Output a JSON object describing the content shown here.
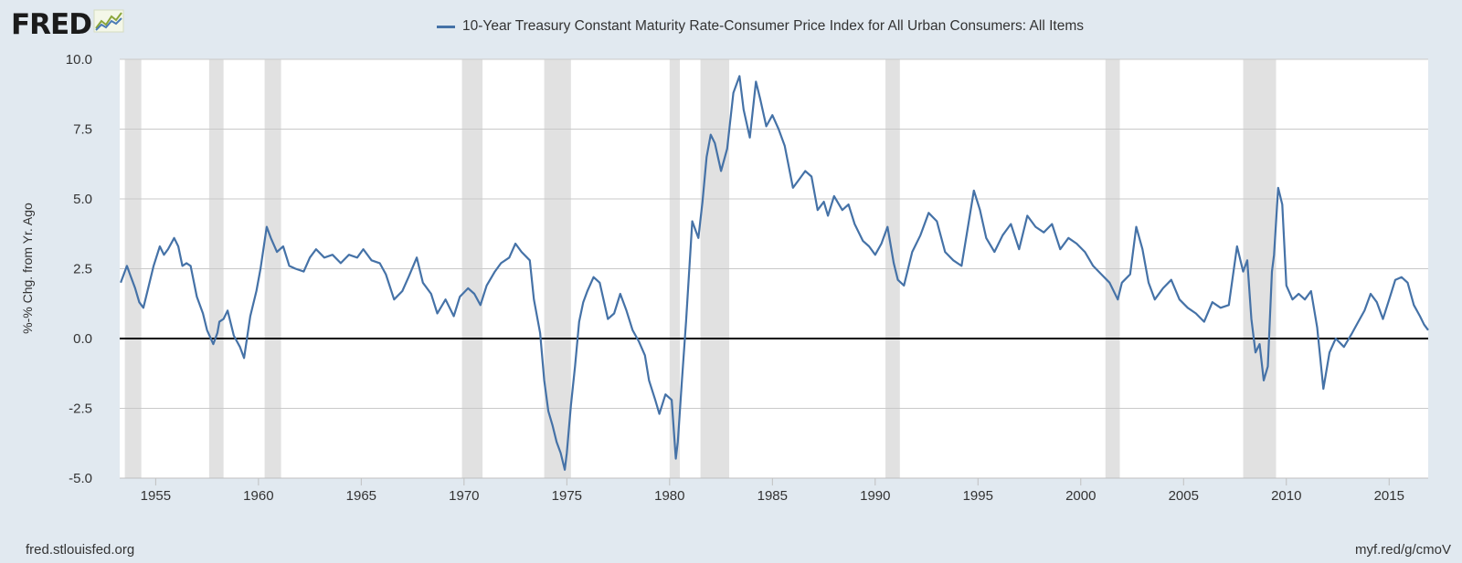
{
  "header": {
    "logo_text": "FRED",
    "logo_icon": "line-chart-icon"
  },
  "footer": {
    "left": "fred.stlouisfed.org",
    "right": "myf.red/g/cmoV"
  },
  "colors": {
    "series": "#4572a7",
    "recession": "#e1e1e1",
    "grid": "#c9c9c9",
    "zero_line": "#000000",
    "background": "#e1e9f0",
    "plot_background": "#ffffff"
  },
  "chart_data": {
    "type": "line",
    "title": "",
    "legend": "10-Year Treasury Constant Maturity Rate-Consumer Price Index for All Urban Consumers: All Items",
    "legend_position": "top-center",
    "ylabel": "%-% Chg. from Yr. Ago",
    "xlabel": "",
    "xlim": [
      1953.25,
      2016.9
    ],
    "ylim": [
      -5.0,
      10.0
    ],
    "yticks": [
      -5.0,
      -2.5,
      0.0,
      2.5,
      5.0,
      7.5,
      10.0
    ],
    "ytick_labels": [
      "-5.0",
      "-2.5",
      "0.0",
      "2.5",
      "5.0",
      "7.5",
      "10.0"
    ],
    "xticks": [
      1955,
      1960,
      1965,
      1970,
      1975,
      1980,
      1985,
      1990,
      1995,
      2000,
      2005,
      2010,
      2015
    ],
    "xtick_labels": [
      "1955",
      "1960",
      "1965",
      "1970",
      "1975",
      "1980",
      "1985",
      "1990",
      "1995",
      "2000",
      "2005",
      "2010",
      "2015"
    ],
    "grid": true,
    "recessions": [
      [
        1953.5,
        1954.3
      ],
      [
        1957.6,
        1958.3
      ],
      [
        1960.3,
        1961.1
      ],
      [
        1969.9,
        1970.9
      ],
      [
        1973.9,
        1975.2
      ],
      [
        1980.0,
        1980.5
      ],
      [
        1981.5,
        1982.9
      ],
      [
        1990.5,
        1991.2
      ],
      [
        2001.2,
        2001.9
      ],
      [
        2007.9,
        2009.5
      ]
    ],
    "series": [
      {
        "name": "10-Year Treasury Constant Maturity Rate-Consumer Price Index for All Urban Consumers: All Items",
        "x": [
          1953.3,
          1953.6,
          1953.8,
          1954.0,
          1954.2,
          1954.4,
          1954.6,
          1954.9,
          1955.2,
          1955.4,
          1955.6,
          1955.9,
          1956.1,
          1956.3,
          1956.5,
          1956.7,
          1957.0,
          1957.3,
          1957.5,
          1957.8,
          1958.0,
          1958.1,
          1958.3,
          1958.5,
          1958.8,
          1959.1,
          1959.3,
          1959.6,
          1959.9,
          1960.1,
          1960.4,
          1960.6,
          1960.9,
          1961.2,
          1961.5,
          1961.8,
          1962.2,
          1962.5,
          1962.8,
          1963.2,
          1963.6,
          1964.0,
          1964.4,
          1964.8,
          1965.1,
          1965.5,
          1965.9,
          1966.2,
          1966.6,
          1967.0,
          1967.3,
          1967.7,
          1968.0,
          1968.4,
          1968.7,
          1969.1,
          1969.5,
          1969.8,
          1970.2,
          1970.5,
          1970.8,
          1971.1,
          1971.5,
          1971.8,
          1972.2,
          1972.5,
          1972.8,
          1973.2,
          1973.4,
          1973.7,
          1973.9,
          1974.1,
          1974.3,
          1974.5,
          1974.7,
          1974.9,
          1975.0,
          1975.2,
          1975.4,
          1975.6,
          1975.8,
          1976.0,
          1976.3,
          1976.6,
          1977.0,
          1977.3,
          1977.6,
          1977.9,
          1978.2,
          1978.5,
          1978.8,
          1979.0,
          1979.3,
          1979.5,
          1979.8,
          1980.1,
          1980.3,
          1980.4,
          1980.6,
          1980.8,
          1981.1,
          1981.4,
          1981.6,
          1981.8,
          1982.0,
          1982.2,
          1982.5,
          1982.8,
          1983.1,
          1983.4,
          1983.6,
          1983.9,
          1984.2,
          1984.4,
          1984.7,
          1985.0,
          1985.3,
          1985.6,
          1986.0,
          1986.3,
          1986.6,
          1986.9,
          1987.2,
          1987.5,
          1987.7,
          1988.0,
          1988.4,
          1988.7,
          1989.0,
          1989.4,
          1989.7,
          1990.0,
          1990.3,
          1990.6,
          1990.9,
          1991.1,
          1991.4,
          1991.8,
          1992.2,
          1992.6,
          1993.0,
          1993.4,
          1993.8,
          1994.2,
          1994.6,
          1994.8,
          1995.1,
          1995.4,
          1995.8,
          1996.2,
          1996.6,
          1997.0,
          1997.4,
          1997.8,
          1998.2,
          1998.6,
          1999.0,
          1999.4,
          1999.8,
          2000.2,
          2000.6,
          2001.0,
          2001.4,
          2001.8,
          2002.0,
          2002.4,
          2002.7,
          2003.0,
          2003.3,
          2003.6,
          2004.0,
          2004.4,
          2004.8,
          2005.2,
          2005.6,
          2006.0,
          2006.4,
          2006.8,
          2007.2,
          2007.6,
          2007.9,
          2008.1,
          2008.3,
          2008.5,
          2008.7,
          2008.9,
          2009.1,
          2009.3,
          2009.4,
          2009.6,
          2009.8,
          2010.0,
          2010.3,
          2010.6,
          2010.9,
          2011.2,
          2011.5,
          2011.8,
          2012.1,
          2012.4,
          2012.8,
          2013.2,
          2013.5,
          2013.8,
          2014.1,
          2014.4,
          2014.7,
          2015.0,
          2015.3,
          2015.6,
          2015.9,
          2016.2,
          2016.5,
          2016.7,
          2016.9
        ],
        "values": [
          2.0,
          2.6,
          2.2,
          1.8,
          1.3,
          1.1,
          1.7,
          2.6,
          3.3,
          3.0,
          3.2,
          3.6,
          3.3,
          2.6,
          2.7,
          2.6,
          1.5,
          0.9,
          0.3,
          -0.2,
          0.2,
          0.6,
          0.7,
          1.0,
          0.1,
          -0.3,
          -0.7,
          0.8,
          1.7,
          2.5,
          4.0,
          3.6,
          3.1,
          3.3,
          2.6,
          2.5,
          2.4,
          2.9,
          3.2,
          2.9,
          3.0,
          2.7,
          3.0,
          2.9,
          3.2,
          2.8,
          2.7,
          2.3,
          1.4,
          1.7,
          2.2,
          2.9,
          2.0,
          1.6,
          0.9,
          1.4,
          0.8,
          1.5,
          1.8,
          1.6,
          1.2,
          1.9,
          2.4,
          2.7,
          2.9,
          3.4,
          3.1,
          2.8,
          1.4,
          0.2,
          -1.5,
          -2.6,
          -3.1,
          -3.7,
          -4.1,
          -4.7,
          -4.1,
          -2.4,
          -1.0,
          0.6,
          1.3,
          1.7,
          2.2,
          2.0,
          0.7,
          0.9,
          1.6,
          1.0,
          0.3,
          -0.1,
          -0.6,
          -1.5,
          -2.2,
          -2.7,
          -2.0,
          -2.2,
          -4.3,
          -3.7,
          -1.5,
          0.6,
          4.2,
          3.6,
          4.9,
          6.5,
          7.3,
          7.0,
          6.0,
          6.8,
          8.8,
          9.4,
          8.2,
          7.2,
          9.2,
          8.6,
          7.6,
          8.0,
          7.5,
          6.9,
          5.4,
          5.7,
          6.0,
          5.8,
          4.6,
          4.9,
          4.4,
          5.1,
          4.6,
          4.8,
          4.1,
          3.5,
          3.3,
          3.0,
          3.4,
          4.0,
          2.7,
          2.1,
          1.9,
          3.1,
          3.7,
          4.5,
          4.2,
          3.1,
          2.8,
          2.6,
          4.4,
          5.3,
          4.6,
          3.6,
          3.1,
          3.7,
          4.1,
          3.2,
          4.4,
          4.0,
          3.8,
          4.1,
          3.2,
          3.6,
          3.4,
          3.1,
          2.6,
          2.3,
          2.0,
          1.4,
          2.0,
          2.3,
          4.0,
          3.2,
          2.0,
          1.4,
          1.8,
          2.1,
          1.4,
          1.1,
          0.9,
          0.6,
          1.3,
          1.1,
          1.2,
          3.3,
          2.4,
          2.8,
          0.7,
          -0.5,
          -0.2,
          -1.5,
          -1.0,
          2.4,
          3.0,
          5.4,
          4.8,
          1.9,
          1.4,
          1.6,
          1.4,
          1.7,
          0.4,
          -1.8,
          -0.5,
          0.0,
          -0.3,
          0.2,
          0.6,
          1.0,
          1.6,
          1.3,
          0.7,
          1.4,
          2.1,
          2.2,
          2.0,
          1.2,
          0.8,
          0.5,
          0.3
        ]
      }
    ]
  }
}
